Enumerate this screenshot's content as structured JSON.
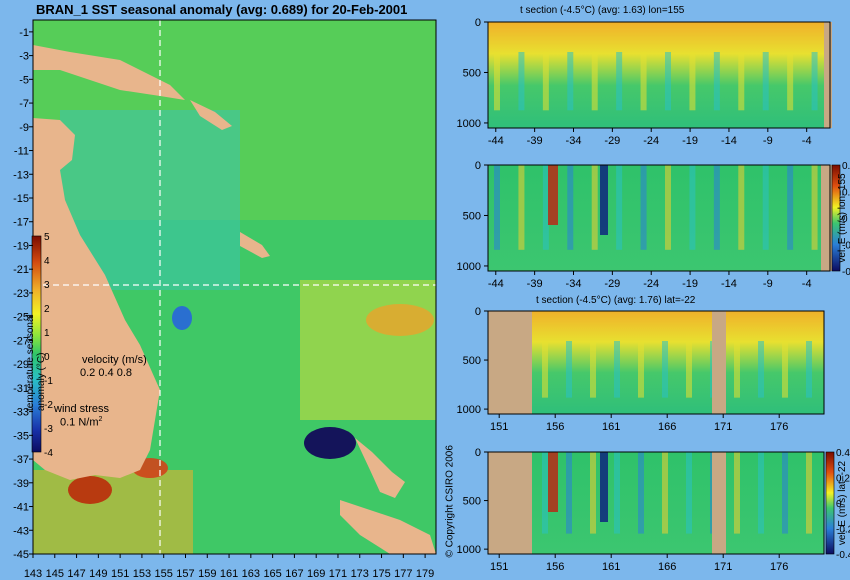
{
  "chart_data": [
    {
      "type": "heatmap",
      "title": "BRAN_1 SST seasonal anomaly (avg: 0.689) for 20-Feb-2001",
      "x_ticks": [
        "143",
        "145",
        "147",
        "149",
        "151",
        "153",
        "155",
        "157",
        "159",
        "161",
        "163",
        "165",
        "167",
        "169",
        "171",
        "173",
        "175",
        "177",
        "179"
      ],
      "y_ticks": [
        "-1",
        "-3",
        "-5",
        "-7",
        "-9",
        "-11",
        "-13",
        "-15",
        "-17",
        "-19",
        "-21",
        "-23",
        "-25",
        "-27",
        "-29",
        "-31",
        "-33",
        "-35",
        "-37",
        "-39",
        "-41",
        "-43",
        "-45"
      ],
      "xlim": [
        143,
        180
      ],
      "ylim": [
        -45,
        0
      ],
      "section_lines": {
        "lon": 155,
        "lat": -22
      },
      "colorbar": {
        "label": "temperature seasonal anomaly (°C)",
        "ticks": [
          "5",
          "4",
          "3",
          "2",
          "1",
          "0",
          "-1",
          "-2",
          "-3",
          "-4"
        ],
        "range": [
          -4,
          5
        ]
      },
      "legend_velocity": {
        "label": "velocity (m/s)",
        "values": "0.2 0.4 0.8"
      },
      "legend_wind": {
        "label": "wind stress",
        "value": "0.1 N/m",
        "sup": "2"
      }
    },
    {
      "type": "heatmap",
      "title": "t section (-4.5°C) (avg: 1.63) lon=155",
      "x_ticks": [
        "-44",
        "-39",
        "-34",
        "-29",
        "-24",
        "-19",
        "-14",
        "-9",
        "-4"
      ],
      "y_ticks": [
        "0",
        "500",
        "1000"
      ],
      "xlim": [
        -45,
        -1
      ],
      "ylim": [
        1050,
        0
      ]
    },
    {
      "type": "heatmap",
      "title": "",
      "x_ticks": [
        "-44",
        "-39",
        "-34",
        "-29",
        "-24",
        "-19",
        "-14",
        "-9",
        "-4"
      ],
      "y_ticks": [
        "0",
        "500",
        "1000"
      ],
      "xlim": [
        -45,
        -1
      ],
      "ylim": [
        1050,
        0
      ],
      "colorbar": {
        "label": "vel. E (m/s) lon=155",
        "ticks": [
          "0.4",
          "0.2",
          "0",
          "-0.2",
          "-0.4"
        ]
      }
    },
    {
      "type": "heatmap",
      "title": "t section (-4.5°C) (avg: 1.76) lat=-22",
      "x_ticks": [
        "151",
        "156",
        "161",
        "166",
        "171",
        "176"
      ],
      "y_ticks": [
        "0",
        "500",
        "1000"
      ],
      "xlim": [
        150,
        180
      ],
      "ylim": [
        1050,
        0
      ]
    },
    {
      "type": "heatmap",
      "title": "",
      "x_ticks": [
        "151",
        "156",
        "161",
        "166",
        "171",
        "176"
      ],
      "y_ticks": [
        "0",
        "500",
        "1000"
      ],
      "xlim": [
        150,
        180
      ],
      "ylim": [
        1050,
        0
      ],
      "colorbar": {
        "label": "vel. E (m/s) lat=-22",
        "ticks": [
          "0.4",
          "0.2",
          "0",
          "-0.2",
          "-0.4"
        ]
      }
    }
  ],
  "copyright": "© Copyright CSIRO 2006"
}
